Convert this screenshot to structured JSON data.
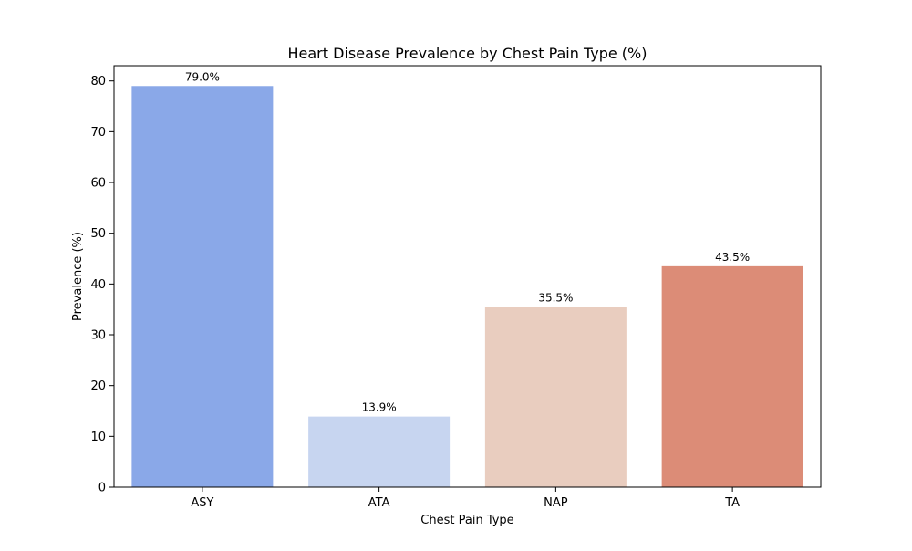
{
  "chart_data": {
    "type": "bar",
    "title": "Heart Disease Prevalence by Chest Pain Type (%)",
    "xlabel": "Chest Pain Type",
    "ylabel": "Prevalence (%)",
    "categories": [
      "ASY",
      "ATA",
      "NAP",
      "TA"
    ],
    "values": [
      79.0,
      13.9,
      35.5,
      43.5
    ],
    "value_labels": [
      "79.0%",
      "13.9%",
      "35.5%",
      "43.5%"
    ],
    "colors": [
      "#8aa8e8",
      "#c7d5f0",
      "#e9cdbf",
      "#dc8c77"
    ],
    "ylim": [
      0,
      83
    ],
    "yticks": [
      0,
      10,
      20,
      30,
      40,
      50,
      60,
      70,
      80
    ],
    "grid": false,
    "legend": "none"
  }
}
